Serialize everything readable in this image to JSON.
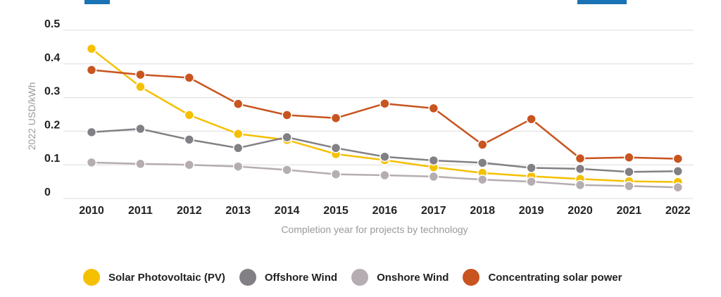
{
  "chart_data": {
    "type": "line",
    "title": "",
    "xlabel": "Completion year for projects by technology",
    "ylabel": "2022 USD/kWh",
    "ylim": [
      0,
      0.5
    ],
    "yticks": [
      "0",
      "0.1",
      "0.2",
      "0.3",
      "0.4",
      "0.5"
    ],
    "x": [
      "2010",
      "2011",
      "2012",
      "2013",
      "2014",
      "2015",
      "2016",
      "2017",
      "2018",
      "2019",
      "2020",
      "2021",
      "2022"
    ],
    "grid": true,
    "legend_position": "bottom",
    "series": [
      {
        "name": "Solar Photovoltaic (PV)",
        "color": "#f5c000",
        "values": [
          0.445,
          0.332,
          0.248,
          0.192,
          0.174,
          0.132,
          0.114,
          0.093,
          0.076,
          0.066,
          0.058,
          0.051,
          0.049
        ]
      },
      {
        "name": "Offshore Wind",
        "color": "#838085",
        "values": [
          0.197,
          0.207,
          0.175,
          0.15,
          0.182,
          0.15,
          0.124,
          0.113,
          0.106,
          0.091,
          0.088,
          0.079,
          0.081
        ]
      },
      {
        "name": "Onshore Wind",
        "color": "#b5adb2",
        "values": [
          0.107,
          0.103,
          0.1,
          0.095,
          0.085,
          0.072,
          0.069,
          0.065,
          0.056,
          0.05,
          0.04,
          0.037,
          0.033
        ]
      },
      {
        "name": "Concentrating solar power",
        "color": "#c8541f",
        "values": [
          0.382,
          0.368,
          0.359,
          0.281,
          0.248,
          0.239,
          0.282,
          0.268,
          0.16,
          0.236,
          0.119,
          0.122,
          0.118
        ]
      }
    ]
  }
}
